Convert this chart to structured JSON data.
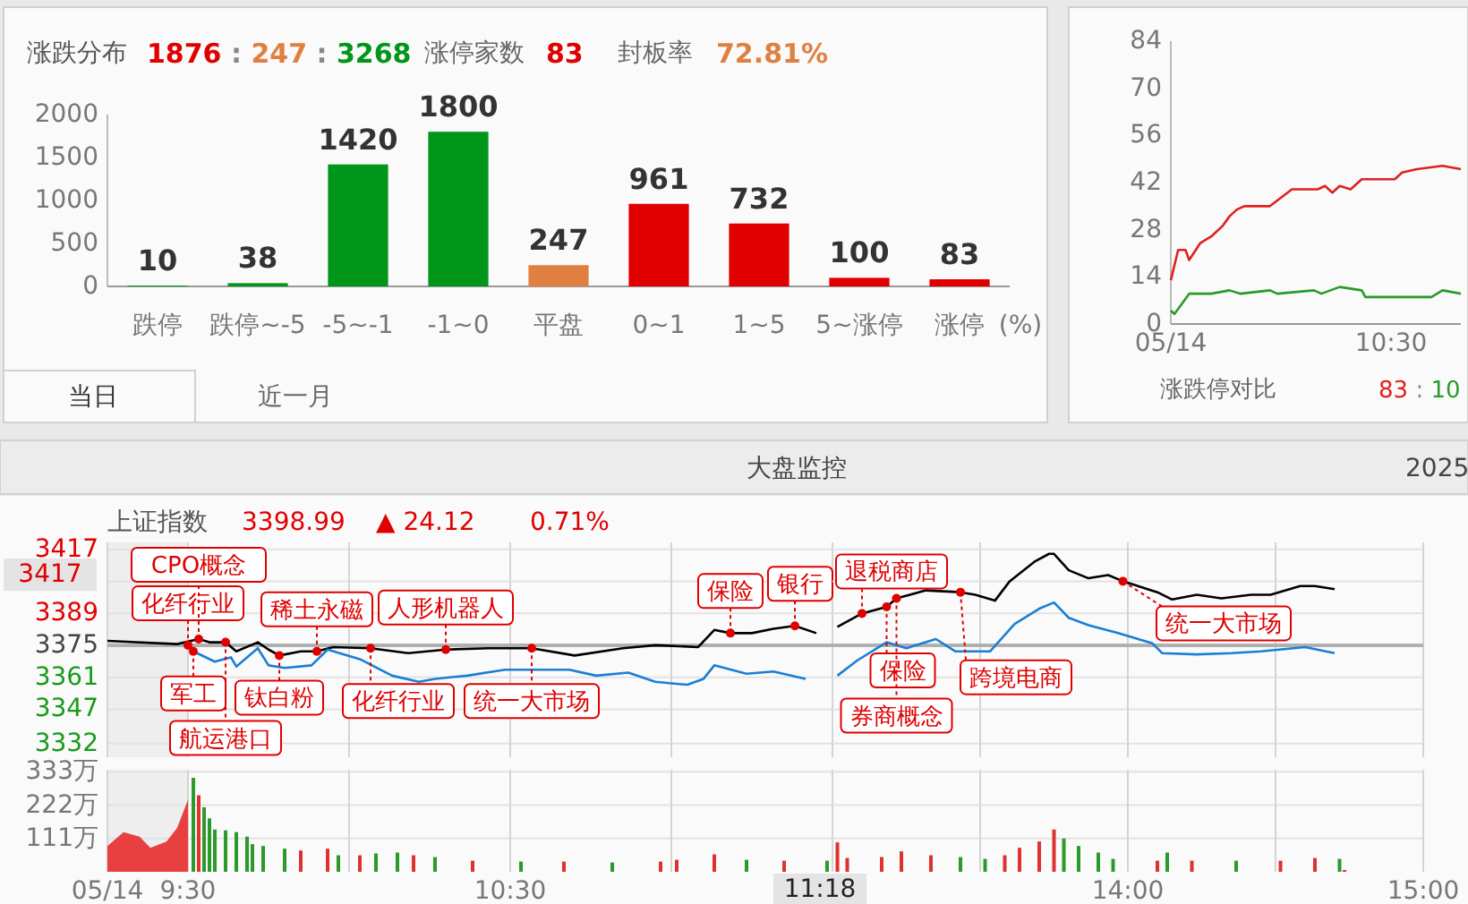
{
  "chart_data": [
    {
      "type": "bar",
      "title": "涨跌分布",
      "xlabel": "(%)",
      "categories": [
        "跌停",
        "跌停~-5",
        "-5~-1",
        "-1~0",
        "平盘",
        "0~1",
        "1~5",
        "5~涨停",
        "涨停"
      ],
      "values": [
        10,
        38,
        1420,
        1800,
        247,
        961,
        732,
        100,
        83
      ],
      "colors": [
        "#00961a",
        "#00961a",
        "#00961a",
        "#00961a",
        "#e08040",
        "#e00000",
        "#e00000",
        "#e00000",
        "#e00000"
      ],
      "ylim": [
        0,
        2000
      ],
      "yticks": [
        0,
        500,
        1000,
        1500,
        2000
      ],
      "data_labels": true,
      "annotations": [
        "1876 : 247 : 3268",
        "涨停家数",
        "83",
        "封板率",
        "72.81%",
        "当日",
        "近一月"
      ]
    },
    {
      "type": "line",
      "xlim": [
        "2025-05-14T09:30",
        "2025-05-14T10:49"
      ],
      "xticks": [
        {
          "value": "2025-05-14T09:30",
          "label": "05/14"
        },
        {
          "value": "2025-05-14T10:30",
          "label": "10:30"
        }
      ],
      "ylim": [
        0,
        84
      ],
      "yticks": [
        0,
        14,
        28,
        42,
        56,
        70,
        84
      ],
      "annotations": [
        "涨跌停对比",
        "83 : 10"
      ],
      "series": [
        {
          "color": "#e02020",
          "x": [
            "2025-05-14T09:30",
            "2025-05-14T09:32",
            "2025-05-14T09:34",
            "2025-05-14T09:35",
            "2025-05-14T09:38",
            "2025-05-14T09:41",
            "2025-05-14T09:44",
            "2025-05-14T09:46",
            "2025-05-14T09:48",
            "2025-05-14T09:50",
            "2025-05-14T09:55",
            "2025-05-14T09:57",
            "2025-05-14T10:03",
            "2025-05-14T10:10",
            "2025-05-14T10:12",
            "2025-05-14T10:14",
            "2025-05-14T10:16",
            "2025-05-14T10:19",
            "2025-05-14T10:22",
            "2025-05-14T10:26",
            "2025-05-14T10:31",
            "2025-05-14T10:33",
            "2025-05-14T10:37",
            "2025-05-14T10:44",
            "2025-05-14T10:49"
          ],
          "values": [
            13,
            22,
            22,
            19,
            24,
            26,
            29,
            32,
            34,
            35,
            35,
            35,
            40,
            40,
            41,
            39,
            41,
            40,
            43,
            43,
            43,
            45,
            46,
            47,
            46
          ]
        },
        {
          "color": "#2a9a2a",
          "x": [
            "2025-05-14T09:30",
            "2025-05-14T09:31",
            "2025-05-14T09:33",
            "2025-05-14T09:35",
            "2025-05-14T09:38",
            "2025-05-14T09:41",
            "2025-05-14T09:46",
            "2025-05-14T09:49",
            "2025-05-14T09:57",
            "2025-05-14T09:59",
            "2025-05-14T10:09",
            "2025-05-14T10:11",
            "2025-05-14T10:16",
            "2025-05-14T10:22",
            "2025-05-14T10:23",
            "2025-05-14T10:41",
            "2025-05-14T10:44",
            "2025-05-14T10:49"
          ],
          "values": [
            4,
            3,
            6,
            9,
            9,
            9,
            10,
            9,
            10,
            9,
            10,
            9,
            11,
            10,
            8,
            8,
            10,
            9
          ]
        }
      ]
    },
    {
      "type": "line",
      "title": "上证指数",
      "xlim": [
        "2025-05-14T09:15",
        "2025-05-14T11:30"
      ],
      "xticks": [
        {
          "value": "2025-05-14T09:15",
          "label": null
        },
        {
          "value": "2025-05-14T09:30",
          "label": null
        },
        {
          "value": "2025-05-14T10:00",
          "label": null
        },
        {
          "value": "2025-05-14T10:30",
          "label": null
        },
        {
          "value": "2025-05-14T11:00",
          "label": null
        },
        {
          "value": "2025-05-14T11:30",
          "label": null
        }
      ],
      "ylim": [
        3326,
        3420
      ],
      "yticks": [
        3332,
        3347,
        3361,
        3375,
        3389,
        {
          "value": 3403,
          "label": null
        },
        3417
      ],
      "tick_labels": "y",
      "grid": true,
      "bands": [
        {
          "axis": "x",
          "from": "2025-05-14T09:15",
          "to": "2025-05-14T09:30",
          "color": "#eeeeee"
        }
      ],
      "ref_lines": [
        {
          "axis": "y",
          "value": 3375,
          "color": "#b0b0b0"
        }
      ],
      "annotations": [
        "大盘监控",
        "2025",
        "3398.99",
        "▲ 24.12",
        "0.71%",
        "3417",
        {
          "text": "化纤行业",
          "x": "2025-05-14T09:30",
          "y": 3375
        },
        {
          "text": "军工",
          "x": "2025-05-14T09:31",
          "y": 3372.3
        },
        {
          "text": "CPO概念",
          "x": "2025-05-14T09:32",
          "y": 3377.7
        },
        {
          "text": "航运港口",
          "x": "2025-05-14T09:37",
          "y": 3376.3
        },
        {
          "text": "钛白粉",
          "x": "2025-05-14T09:47",
          "y": 3370.5
        },
        {
          "text": "稀土永磁",
          "x": "2025-05-14T09:54",
          "y": 3372.3
        },
        {
          "text": "化纤行业",
          "x": "2025-05-14T10:04",
          "y": 3373.7
        },
        {
          "text": "人形机器人",
          "x": "2025-05-14T10:18",
          "y": 3373.1
        },
        {
          "text": "统一大市场",
          "x": "2025-05-14T10:34",
          "y": 3373.7
        },
        {
          "text": "保险",
          "x": "2025-05-14T11:11",
          "y": 3380.3
        },
        {
          "text": "银行",
          "x": "2025-05-14T11:23",
          "y": 3383.5
        }
      ],
      "series": [
        {
          "color": "#000000",
          "x": [
            "2025-05-14T09:15",
            "2025-05-14T09:28",
            "2025-05-14T09:32",
            "2025-05-14T09:34",
            "2025-05-14T09:37",
            "2025-05-14T09:39",
            "2025-05-14T09:43",
            "2025-05-14T09:45",
            "2025-05-14T09:47",
            "2025-05-14T09:51",
            "2025-05-14T09:54",
            "2025-05-14T09:57",
            "2025-05-14T10:04",
            "2025-05-14T10:11",
            "2025-05-14T10:18",
            "2025-05-14T10:26",
            "2025-05-14T10:34",
            "2025-05-14T10:42",
            "2025-05-14T10:51",
            "2025-05-14T10:57",
            "2025-05-14T11:05",
            "2025-05-14T11:08",
            "2025-05-14T11:11",
            "2025-05-14T11:15",
            "2025-05-14T11:19",
            "2025-05-14T11:23",
            "2025-05-14T11:27"
          ],
          "values": [
            3376.9,
            3375.5,
            3377.7,
            3376.3,
            3376.3,
            3372.3,
            3376.3,
            3373.1,
            3370.5,
            3372.3,
            3372.3,
            3374.2,
            3373.7,
            3371.5,
            3373.1,
            3373.7,
            3373.7,
            3370.5,
            3373.7,
            3375,
            3374.2,
            3381.7,
            3380.3,
            3380.3,
            3382.2,
            3383.5,
            3380.3
          ]
        },
        {
          "color": "#1a7fd4",
          "x": [
            "2025-05-14T09:30",
            "2025-05-14T09:31",
            "2025-05-14T09:35",
            "2025-05-14T09:38",
            "2025-05-14T09:39",
            "2025-05-14T09:43",
            "2025-05-14T09:45",
            "2025-05-14T09:48",
            "2025-05-14T09:53",
            "2025-05-14T09:56",
            "2025-05-14T10:02",
            "2025-05-14T10:08",
            "2025-05-14T10:13",
            "2025-05-14T10:16",
            "2025-05-14T10:22",
            "2025-05-14T10:29",
            "2025-05-14T10:41",
            "2025-05-14T10:46",
            "2025-05-14T10:52",
            "2025-05-14T10:57",
            "2025-05-14T11:03",
            "2025-05-14T11:06",
            "2025-05-14T11:08",
            "2025-05-14T11:14",
            "2025-05-14T11:19",
            "2025-05-14T11:25"
          ],
          "values": [
            3375,
            3372.3,
            3367.8,
            3369.7,
            3365.7,
            3373.7,
            3366.2,
            3365.1,
            3366.2,
            3373.1,
            3368.9,
            3361.7,
            3359,
            3360.3,
            3361.7,
            3364.3,
            3364.3,
            3361.7,
            3363,
            3359,
            3357.7,
            3360.3,
            3366.2,
            3362.5,
            3363.5,
            3360.3
          ]
        }
      ]
    },
    {
      "type": "line",
      "xlim": [
        "2025-05-14T13:00",
        "2025-05-14T15:00"
      ],
      "xticks": [
        {
          "value": "2025-05-14T13:30",
          "label": null
        },
        {
          "value": "2025-05-14T14:00",
          "label": null
        },
        {
          "value": "2025-05-14T14:30",
          "label": null
        },
        {
          "value": "2025-05-14T15:00",
          "label": null
        }
      ],
      "ylim": [
        3326,
        3420
      ],
      "yticks": [
        3332,
        3347,
        3361,
        3375,
        3389,
        {
          "value": 3403,
          "label": null
        },
        3417
      ],
      "tick_labels": false,
      "grid": true,
      "ref_lines": [
        {
          "axis": "y",
          "value": 3375,
          "color": "#b0b0b0"
        }
      ],
      "annotations": [
        {
          "text": "退税商店",
          "x": "2025-05-14T13:06",
          "y": 3388.9
        },
        {
          "text": "保险",
          "x": "2025-05-14T13:11",
          "y": 3391.8
        },
        {
          "text": "券商概念",
          "x": "2025-05-14T13:13",
          "y": 3395.5
        },
        {
          "text": "跨境电商",
          "x": "2025-05-14T13:26",
          "y": 3398.2
        },
        {
          "text": "统一大市场",
          "x": "2025-05-14T13:59",
          "y": 3403
        }
      ],
      "series": [
        {
          "color": "#000000",
          "x": [
            "2025-05-14T13:01",
            "2025-05-14T13:06",
            "2025-05-14T13:11",
            "2025-05-14T13:13",
            "2025-05-14T13:19",
            "2025-05-14T13:26",
            "2025-05-14T13:29",
            "2025-05-14T13:33",
            "2025-05-14T13:36",
            "2025-05-14T13:41",
            "2025-05-14T13:44",
            "2025-05-14T13:45",
            "2025-05-14T13:48",
            "2025-05-14T13:52",
            "2025-05-14T13:56",
            "2025-05-14T13:59",
            "2025-05-14T14:06",
            "2025-05-14T14:09",
            "2025-05-14T14:14",
            "2025-05-14T14:19",
            "2025-05-14T14:25",
            "2025-05-14T14:29",
            "2025-05-14T14:35",
            "2025-05-14T14:38",
            "2025-05-14T14:42"
          ],
          "values": [
            3383,
            3388.9,
            3391.8,
            3395.5,
            3399,
            3398.2,
            3397.1,
            3394.5,
            3403,
            3411.5,
            3415,
            3415,
            3407.8,
            3404.3,
            3405.7,
            3403,
            3398.2,
            3395,
            3397.1,
            3395.5,
            3397.1,
            3397.1,
            3400.9,
            3400.9,
            3399.5
          ]
        },
        {
          "color": "#1a7fd4",
          "x": [
            "2025-05-14T13:01",
            "2025-05-14T13:05",
            "2025-05-14T13:11",
            "2025-05-14T13:15",
            "2025-05-14T13:21",
            "2025-05-14T13:25",
            "2025-05-14T13:32",
            "2025-05-14T13:37",
            "2025-05-14T13:42",
            "2025-05-14T13:45",
            "2025-05-14T13:48",
            "2025-05-14T13:52",
            "2025-05-14T13:58",
            "2025-05-14T14:05",
            "2025-05-14T14:07",
            "2025-05-14T14:14",
            "2025-05-14T14:21",
            "2025-05-14T14:27",
            "2025-05-14T14:36",
            "2025-05-14T14:42"
          ],
          "values": [
            3361.7,
            3368.3,
            3376.3,
            3373.7,
            3377.7,
            3372.3,
            3372.3,
            3384.3,
            3391,
            3393.7,
            3387,
            3383.8,
            3380.3,
            3375.8,
            3371.5,
            3371,
            3371.5,
            3372.3,
            3374.2,
            3371.5
          ]
        }
      ]
    },
    {
      "type": "bar",
      "xlim": [
        "2025-05-14T09:15",
        "2025-05-14T11:30"
      ],
      "xticks": [
        {
          "value": "2025-05-14T09:15",
          "label": "05/14"
        },
        {
          "value": "2025-05-14T09:30",
          "label": "9:30"
        },
        {
          "value": "2025-05-14T10:00",
          "label": null
        },
        {
          "value": "2025-05-14T10:30",
          "label": "10:30"
        },
        {
          "value": "2025-05-14T11:00",
          "label": null
        },
        {
          "value": "2025-05-14T11:30",
          "label": null
        }
      ],
      "ylim": [
        0,
        340
      ],
      "yticks": [
        {
          "value": 111,
          "label": "111万"
        },
        {
          "value": 222,
          "label": "222万"
        },
        {
          "value": 333,
          "label": "333万"
        }
      ],
      "grid": true,
      "bands": [
        {
          "axis": "x",
          "from": "2025-05-14T09:15",
          "to": "2025-05-14T09:30",
          "color": "#eeeeee"
        }
      ],
      "annotations": [
        "11:18"
      ],
      "series": [
        {
          "type": "area",
          "color": "#e84040",
          "x": [
            "2025-05-14T09:15",
            "2025-05-14T09:18",
            "2025-05-14T09:21",
            "2025-05-14T09:23",
            "2025-05-14T09:26",
            "2025-05-14T09:28",
            "2025-05-14T09:30"
          ],
          "values": [
            86,
            132,
            117,
            80,
            101,
            147,
            240
          ]
        },
        {
          "x": [
            "2025-05-14T09:31",
            "2025-05-14T09:32",
            "2025-05-14T09:33",
            "2025-05-14T09:34",
            "2025-05-14T09:35",
            "2025-05-14T09:37",
            "2025-05-14T09:39",
            "2025-05-14T09:41",
            "2025-05-14T09:42",
            "2025-05-14T09:44",
            "2025-05-14T09:48",
            "2025-05-14T09:51",
            "2025-05-14T09:56",
            "2025-05-14T09:58",
            "2025-05-14T10:02",
            "2025-05-14T10:05",
            "2025-05-14T10:09",
            "2025-05-14T10:12",
            "2025-05-14T10:16",
            "2025-05-14T10:23",
            "2025-05-14T10:32",
            "2025-05-14T10:40",
            "2025-05-14T10:49",
            "2025-05-14T10:58",
            "2025-05-14T11:01",
            "2025-05-14T11:08",
            "2025-05-14T11:14",
            "2025-05-14T11:21",
            "2025-05-14T11:29"
          ],
          "values": [
            313,
            255,
            215,
            178,
            141,
            138,
            132,
            117,
            92,
            86,
            77,
            71,
            77,
            55,
            55,
            61,
            64,
            55,
            49,
            37,
            34,
            34,
            31,
            34,
            40,
            58,
            40,
            37,
            37
          ],
          "colors": [
            "#2a9a2a",
            "#e03030",
            "#2a9a2a",
            "#2a9a2a",
            "#2a9a2a",
            "#2a9a2a",
            "#2a9a2a",
            "#2a9a2a",
            "#2a9a2a",
            "#2a9a2a",
            "#2a9a2a",
            "#e03030",
            "#e03030",
            "#2a9a2a",
            "#e03030",
            "#2a9a2a",
            "#2a9a2a",
            "#e03030",
            "#2a9a2a",
            "#e03030",
            "#2a9a2a",
            "#e03030",
            "#2a9a2a",
            "#e03030",
            "#e03030",
            "#e03030",
            "#2a9a2a",
            "#e03030",
            "#2a9a2a"
          ]
        }
      ]
    },
    {
      "type": "bar",
      "xlim": [
        "2025-05-14T13:00",
        "2025-05-14T15:00"
      ],
      "xticks": [
        {
          "value": "2025-05-14T13:30",
          "label": null
        },
        {
          "value": "2025-05-14T14:00",
          "label": "14:00"
        },
        {
          "value": "2025-05-14T14:30",
          "label": null
        },
        {
          "value": "2025-05-14T15:00",
          "label": "15:00"
        }
      ],
      "ylim": [
        0,
        340
      ],
      "yticks": [
        {
          "value": 111,
          "label": null
        },
        {
          "value": 222,
          "label": null
        },
        {
          "value": 333,
          "label": null
        }
      ],
      "tick_labels": "x",
      "grid": true,
      "series": [
        {
          "x": [
            "2025-05-14T13:01",
            "2025-05-14T13:03",
            "2025-05-14T13:10",
            "2025-05-14T13:14",
            "2025-05-14T13:20",
            "2025-05-14T13:26",
            "2025-05-14T13:31",
            "2025-05-14T13:35",
            "2025-05-14T13:38",
            "2025-05-14T13:42",
            "2025-05-14T13:45",
            "2025-05-14T13:47",
            "2025-05-14T13:50",
            "2025-05-14T13:54",
            "2025-05-14T13:57",
            "2025-05-14T14:06",
            "2025-05-14T14:08",
            "2025-05-14T14:13",
            "2025-05-14T14:22",
            "2025-05-14T14:31",
            "2025-05-14T14:38",
            "2025-05-14T14:43",
            "2025-05-14T14:44"
          ],
          "values": [
            98,
            46,
            49,
            68,
            55,
            49,
            43,
            55,
            80,
            101,
            141,
            111,
            86,
            64,
            43,
            37,
            64,
            37,
            37,
            37,
            46,
            43,
            6
          ],
          "colors": [
            "#e03030",
            "#e03030",
            "#e03030",
            "#e03030",
            "#e03030",
            "#2a9a2a",
            "#2a9a2a",
            "#e03030",
            "#e03030",
            "#e03030",
            "#e03030",
            "#2a9a2a",
            "#2a9a2a",
            "#2a9a2a",
            "#2a9a2a",
            "#e03030",
            "#2a9a2a",
            "#e03030",
            "#2a9a2a",
            "#e03030",
            "#e03030",
            "#2a9a2a",
            "#e03030"
          ]
        }
      ]
    }
  ]
}
